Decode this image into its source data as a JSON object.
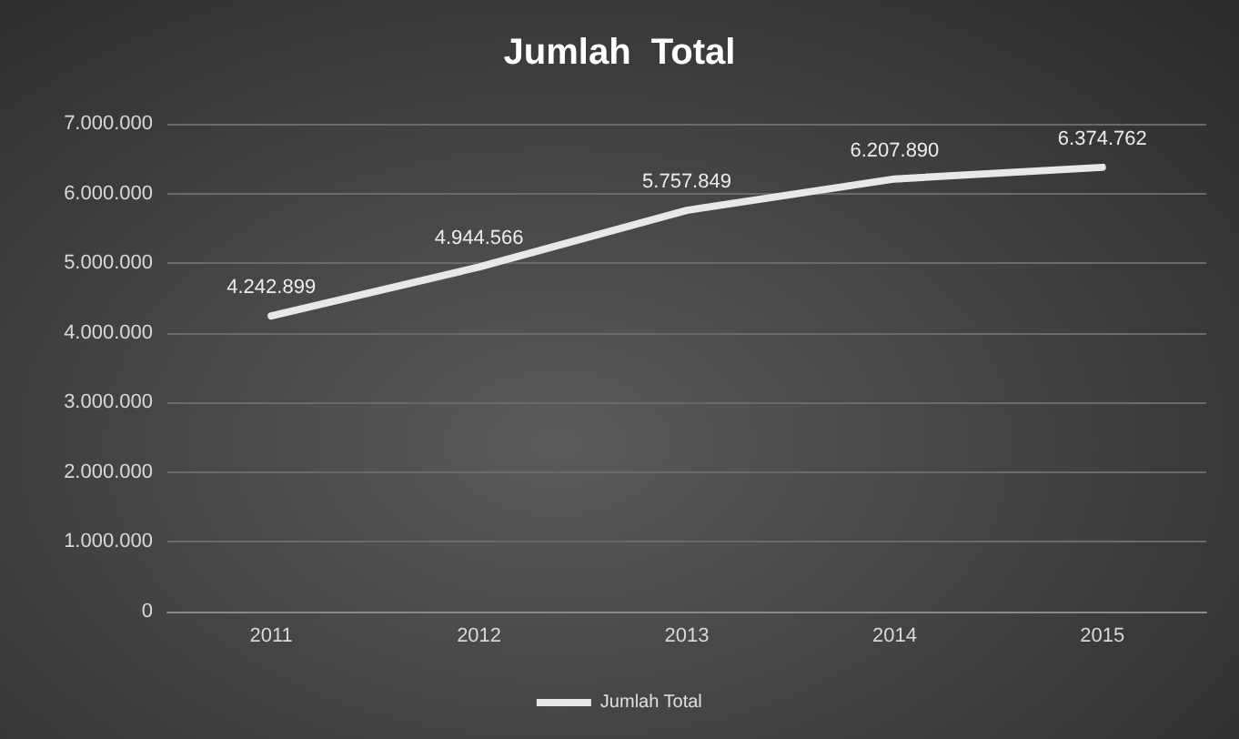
{
  "chart_data": {
    "type": "line",
    "title": "Jumlah  Total",
    "categories": [
      "2011",
      "2012",
      "2013",
      "2014",
      "2015"
    ],
    "series": [
      {
        "name": "Jumlah Total",
        "color": "#e8e8e8",
        "values": [
          4242899,
          4944566,
          5757849,
          6207890,
          6374762
        ],
        "value_labels": [
          "4.242.899",
          "4.944.566",
          "5.757.849",
          "6.207.890",
          "6.374.762"
        ]
      }
    ],
    "ylim": [
      0,
      7000000
    ],
    "yticks": [
      {
        "value": 0,
        "label": "0"
      },
      {
        "value": 1000000,
        "label": "1.000.000"
      },
      {
        "value": 2000000,
        "label": "2.000.000"
      },
      {
        "value": 3000000,
        "label": "3.000.000"
      },
      {
        "value": 4000000,
        "label": "4.000.000"
      },
      {
        "value": 5000000,
        "label": "5.000.000"
      },
      {
        "value": 6000000,
        "label": "6.000.000"
      },
      {
        "value": 7000000,
        "label": "7.000.000"
      }
    ],
    "grid": "y",
    "legend": "bottom",
    "marker": "none",
    "line_style": "solid"
  }
}
